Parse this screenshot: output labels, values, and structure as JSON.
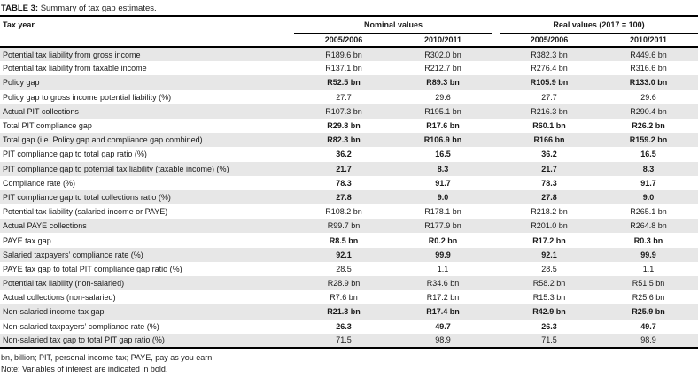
{
  "title": {
    "label": "TABLE 3:",
    "text": "Summary of tax gap estimates."
  },
  "table": {
    "row_header": "Tax year",
    "groups": [
      {
        "label": "Nominal values",
        "columns": [
          "2005/2006",
          "2010/2011"
        ]
      },
      {
        "label": "Real values (2017 = 100)",
        "columns": [
          "2005/2006",
          "2010/2011"
        ]
      }
    ],
    "rows": [
      {
        "label": "Potential tax liability from gross income",
        "values": [
          "R189.6 bn",
          "R302.0 bn",
          "R382.3 bn",
          "R449.6 bn"
        ],
        "bold": false
      },
      {
        "label": "Potential tax liability from taxable income",
        "values": [
          "R137.1 bn",
          "R212.7 bn",
          "R276.4 bn",
          "R316.6 bn"
        ],
        "bold": false
      },
      {
        "label": "Policy gap",
        "values": [
          "R52.5 bn",
          "R89.3 bn",
          "R105.9 bn",
          "R133.0 bn"
        ],
        "bold": true
      },
      {
        "label": "Policy gap to gross income potential liability (%)",
        "values": [
          "27.7",
          "29.6",
          "27.7",
          "29.6"
        ],
        "bold": false
      },
      {
        "label": "Actual PIT collections",
        "values": [
          "R107.3 bn",
          "R195.1 bn",
          "R216.3 bn",
          "R290.4 bn"
        ],
        "bold": false
      },
      {
        "label": "Total PIT compliance gap",
        "values": [
          "R29.8 bn",
          "R17.6 bn",
          "R60.1 bn",
          "R26.2 bn"
        ],
        "bold": true
      },
      {
        "label": "Total gap (i.e. Policy gap and compliance gap combined)",
        "values": [
          "R82.3 bn",
          "R106.9 bn",
          "R166 bn",
          "R159.2 bn"
        ],
        "bold": true
      },
      {
        "label": "PIT compliance gap to total gap ratio (%)",
        "values": [
          "36.2",
          "16.5",
          "36.2",
          "16.5"
        ],
        "bold": true
      },
      {
        "label": "PIT compliance gap to potential tax liability (taxable income) (%)",
        "values": [
          "21.7",
          "8.3",
          "21.7",
          "8.3"
        ],
        "bold": true
      },
      {
        "label": "Compliance rate (%)",
        "values": [
          "78.3",
          "91.7",
          "78.3",
          "91.7"
        ],
        "bold": true
      },
      {
        "label": "PIT compliance gap to total collections ratio (%)",
        "values": [
          "27.8",
          "9.0",
          "27.8",
          "9.0"
        ],
        "bold": true
      },
      {
        "label": "Potential tax liability (salaried income or PAYE)",
        "values": [
          "R108.2 bn",
          "R178.1 bn",
          "R218.2 bn",
          "R265.1 bn"
        ],
        "bold": false
      },
      {
        "label": "Actual PAYE collections",
        "values": [
          "R99.7 bn",
          "R177.9 bn",
          "R201.0 bn",
          "R264.8 bn"
        ],
        "bold": false
      },
      {
        "label": "PAYE tax gap",
        "values": [
          "R8.5 bn",
          "R0.2 bn",
          "R17.2 bn",
          "R0.3 bn"
        ],
        "bold": true
      },
      {
        "label": "Salaried taxpayers’ compliance rate (%)",
        "values": [
          "92.1",
          "99.9",
          "92.1",
          "99.9"
        ],
        "bold": true
      },
      {
        "label": "PAYE tax gap to total PIT compliance gap ratio (%)",
        "values": [
          "28.5",
          "1.1",
          "28.5",
          "1.1"
        ],
        "bold": false
      },
      {
        "label": "Potential tax liability (non-salaried)",
        "values": [
          "R28.9 bn",
          "R34.6 bn",
          "R58.2 bn",
          "R51.5 bn"
        ],
        "bold": false
      },
      {
        "label": "Actual collections (non-salaried)",
        "values": [
          "R7.6 bn",
          "R17.2 bn",
          "R15.3 bn",
          "R25.6 bn"
        ],
        "bold": false
      },
      {
        "label": "Non-salaried income tax gap",
        "values": [
          "R21.3 bn",
          "R17.4 bn",
          "R42.9 bn",
          "R25.9 bn"
        ],
        "bold": true
      },
      {
        "label": "Non-salaried taxpayers’ compliance rate (%)",
        "values": [
          "26.3",
          "49.7",
          "26.3",
          "49.7"
        ],
        "bold": true
      },
      {
        "label": "Non-salaried tax gap to total PIT gap ratio (%)",
        "values": [
          "71.5",
          "98.9",
          "71.5",
          "98.9"
        ],
        "bold": false
      }
    ]
  },
  "footnotes": [
    "bn, billion; PIT, personal income tax; PAYE, pay as you earn.",
    "Note: Variables of interest are indicated in bold."
  ],
  "colors": {
    "stripe": "#e7e7e7",
    "border": "#000000",
    "text": "#1a1a1a"
  }
}
